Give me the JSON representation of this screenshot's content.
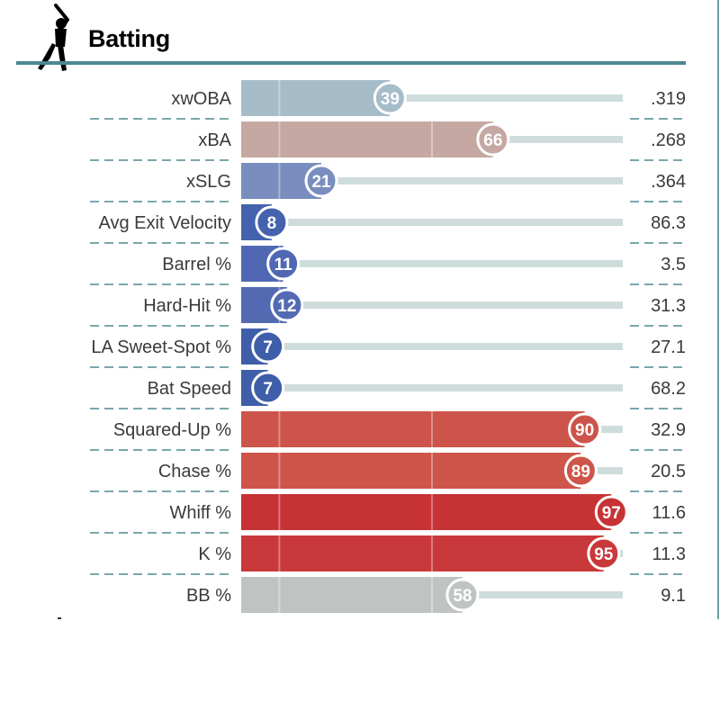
{
  "header": {
    "title": "Batting",
    "icon": "batter-silhouette-icon"
  },
  "chart_data": {
    "type": "bar",
    "title": "Batting",
    "value_range": [
      0,
      100
    ],
    "rows": [
      {
        "metric": "xwOBA",
        "percentile": 39,
        "value": ".319",
        "color": "#a6bcc9"
      },
      {
        "metric": "xBA",
        "percentile": 66,
        "value": ".268",
        "color": "#c5a8a2"
      },
      {
        "metric": "xSLG",
        "percentile": 21,
        "value": ".364",
        "color": "#7a8dbf"
      },
      {
        "metric": "Avg Exit Velocity",
        "percentile": 8,
        "value": "86.3",
        "color": "#4462ad"
      },
      {
        "metric": "Barrel %",
        "percentile": 11,
        "value": "3.5",
        "color": "#5068b3"
      },
      {
        "metric": "Hard-Hit %",
        "percentile": 12,
        "value": "31.3",
        "color": "#536ab3"
      },
      {
        "metric": "LA Sweet-Spot %",
        "percentile": 7,
        "value": "27.1",
        "color": "#3f5ea9"
      },
      {
        "metric": "Bat Speed",
        "percentile": 7,
        "value": "68.2",
        "color": "#3f5ea9"
      },
      {
        "metric": "Squared-Up %",
        "percentile": 90,
        "value": "32.9",
        "color": "#cc544a"
      },
      {
        "metric": "Chase %",
        "percentile": 89,
        "value": "20.5",
        "color": "#cd554a"
      },
      {
        "metric": "Whiff %",
        "percentile": 97,
        "value": "11.6",
        "color": "#c73235"
      },
      {
        "metric": "K %",
        "percentile": 95,
        "value": "11.3",
        "color": "#c9383a"
      },
      {
        "metric": "BB %",
        "percentile": 58,
        "value": "9.1",
        "color": "#bfc4c3"
      }
    ]
  }
}
